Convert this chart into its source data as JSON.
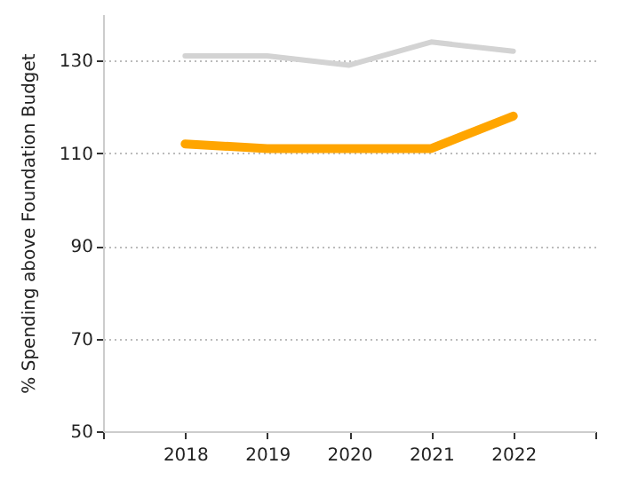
{
  "chart_data": {
    "type": "line",
    "ylabel": "% Spending above Foundation Budget",
    "x": [
      2018,
      2019,
      2020,
      2021,
      2022
    ],
    "series": [
      {
        "color": "#d3d3d3",
        "values": [
          131,
          131,
          129,
          134,
          132
        ]
      },
      {
        "color": "#ffa500",
        "values": [
          112,
          111,
          111,
          111,
          118
        ]
      }
    ],
    "xlim": [
      2017,
      2023
    ],
    "xticks": [
      {
        "value": 2017,
        "label": null
      },
      2018,
      2019,
      2020,
      2021,
      2022,
      {
        "value": 2023,
        "label": null
      }
    ],
    "ylim": [
      50,
      140
    ],
    "yticks": [
      50,
      70,
      90,
      110,
      130
    ],
    "grid": "y",
    "marker": "none",
    "line_style": "solid"
  }
}
